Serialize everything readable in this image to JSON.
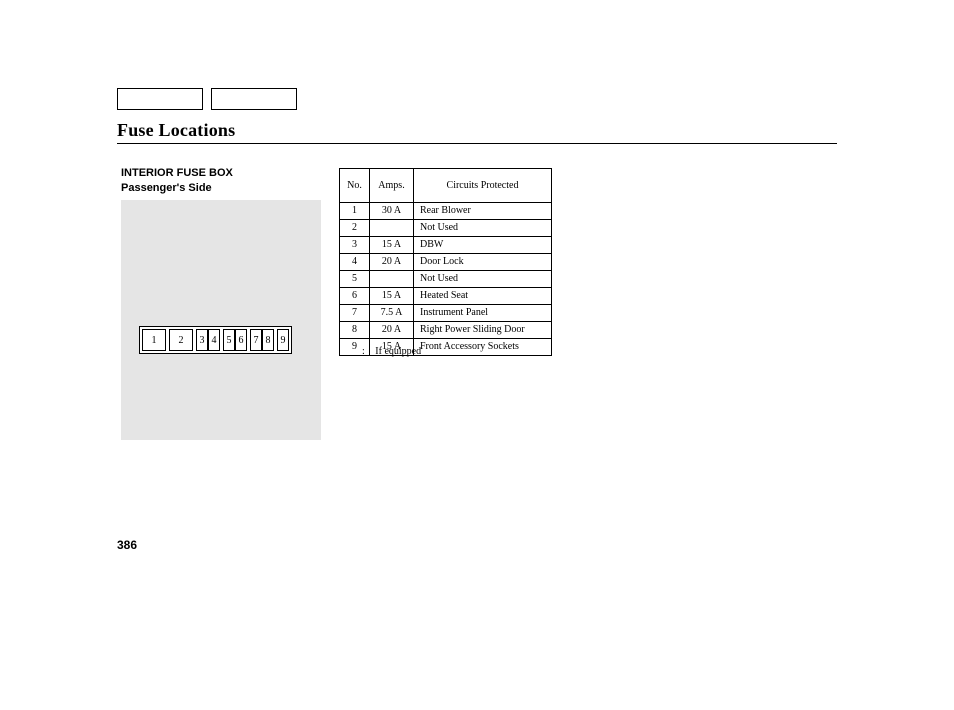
{
  "header": {
    "title": "Fuse Locations",
    "subheading1": "INTERIOR FUSE BOX",
    "subheading2": "Passenger's Side"
  },
  "diagram": {
    "background_color": "#e5e5e5",
    "fuse_labels": [
      "1",
      "2",
      "3",
      "4",
      "5",
      "6",
      "7",
      "8",
      "9"
    ]
  },
  "table": {
    "columns": [
      "No.",
      "Amps.",
      "Circuits Protected"
    ],
    "rows": [
      {
        "no": "1",
        "amps": "30 A",
        "circuit": "Rear Blower"
      },
      {
        "no": "2",
        "amps": "",
        "circuit": "Not Used"
      },
      {
        "no": "3",
        "amps": "15 A",
        "circuit": "DBW"
      },
      {
        "no": "4",
        "amps": "20 A",
        "circuit": "Door Lock"
      },
      {
        "no": "5",
        "amps": "",
        "circuit": "Not Used"
      },
      {
        "no": "6",
        "amps": "15 A",
        "circuit": "Heated Seat"
      },
      {
        "no": "7",
        "amps": "7.5 A",
        "circuit": "Instrument Panel"
      },
      {
        "no": "8",
        "amps": "20 A",
        "circuit": "Right Power Sliding Door"
      },
      {
        "no": "9",
        "amps": "15 A",
        "circuit": "Front Accessory Sockets"
      }
    ]
  },
  "footnote": {
    "marker": ":",
    "text": "If equipped"
  },
  "page_number": "386",
  "colors": {
    "page_bg": "#ffffff",
    "text": "#000000",
    "diagram_bg": "#e5e5e5",
    "border": "#000000"
  }
}
